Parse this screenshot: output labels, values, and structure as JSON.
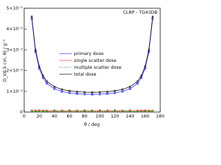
{
  "chart_data": {
    "type": "line",
    "annotation": "CLRP - TG43DB",
    "x_label": "θ / deg",
    "y_label": "D_i(0.5 cm, θ) / g⁻¹",
    "x": [
      10,
      15,
      20,
      25,
      30,
      40,
      50,
      60,
      70,
      80,
      90,
      100,
      110,
      120,
      130,
      140,
      150,
      155,
      160,
      165,
      170
    ],
    "series": [
      {
        "name": "primary dose",
        "color": "#2a2aff",
        "marker": "circle",
        "dash": false,
        "values": [
          0.045,
          0.029,
          0.021,
          0.0165,
          0.0138,
          0.0112,
          0.0099,
          0.0092,
          0.0088,
          0.0086,
          0.0085,
          0.0086,
          0.0088,
          0.0092,
          0.0099,
          0.0112,
          0.0138,
          0.0165,
          0.021,
          0.029,
          0.045
        ]
      },
      {
        "name": "single scatter dose",
        "color": "#ff3a3a",
        "marker": "square",
        "dash": false,
        "values": [
          0.0006,
          0.0006,
          0.0006,
          0.0006,
          0.0006,
          0.0006,
          0.0006,
          0.0006,
          0.0006,
          0.0006,
          0.0006,
          0.0006,
          0.0006,
          0.0006,
          0.0006,
          0.0006,
          0.0006,
          0.0006,
          0.0006,
          0.0006,
          0.0006
        ]
      },
      {
        "name": "multiple scatter dose",
        "color": "#1a9a1a",
        "marker": "triangle",
        "dash": true,
        "values": [
          0.0004,
          0.0004,
          0.0004,
          0.0004,
          0.0004,
          0.0004,
          0.0004,
          0.0004,
          0.0004,
          0.0004,
          0.0004,
          0.0004,
          0.0004,
          0.0004,
          0.0004,
          0.0004,
          0.0004,
          0.0004,
          0.0004,
          0.0004,
          0.0004
        ]
      },
      {
        "name": "total dose",
        "color": "#000000",
        "marker": "cross",
        "dash": false,
        "values": [
          0.046,
          0.03,
          0.022,
          0.0175,
          0.0148,
          0.0122,
          0.0109,
          0.0102,
          0.0098,
          0.0096,
          0.0095,
          0.0096,
          0.0098,
          0.0102,
          0.0109,
          0.0122,
          0.0148,
          0.0175,
          0.022,
          0.03,
          0.046
        ]
      }
    ],
    "xlim": [
      0,
      180
    ],
    "xticks": [
      0,
      20,
      40,
      60,
      80,
      100,
      120,
      140,
      160,
      180
    ],
    "ylim": [
      0,
      0.05
    ],
    "yticks": [
      0,
      {
        "value": 0.01,
        "label": "1×10⁻²"
      },
      {
        "value": 0.02,
        "label": "2×10⁻²"
      },
      {
        "value": 0.03,
        "label": "3×10⁻²"
      },
      {
        "value": 0.04,
        "label": "4×10⁻²"
      },
      {
        "value": 0.05,
        "label": "5×10⁻²"
      }
    ],
    "legend": "center",
    "grid": false
  }
}
